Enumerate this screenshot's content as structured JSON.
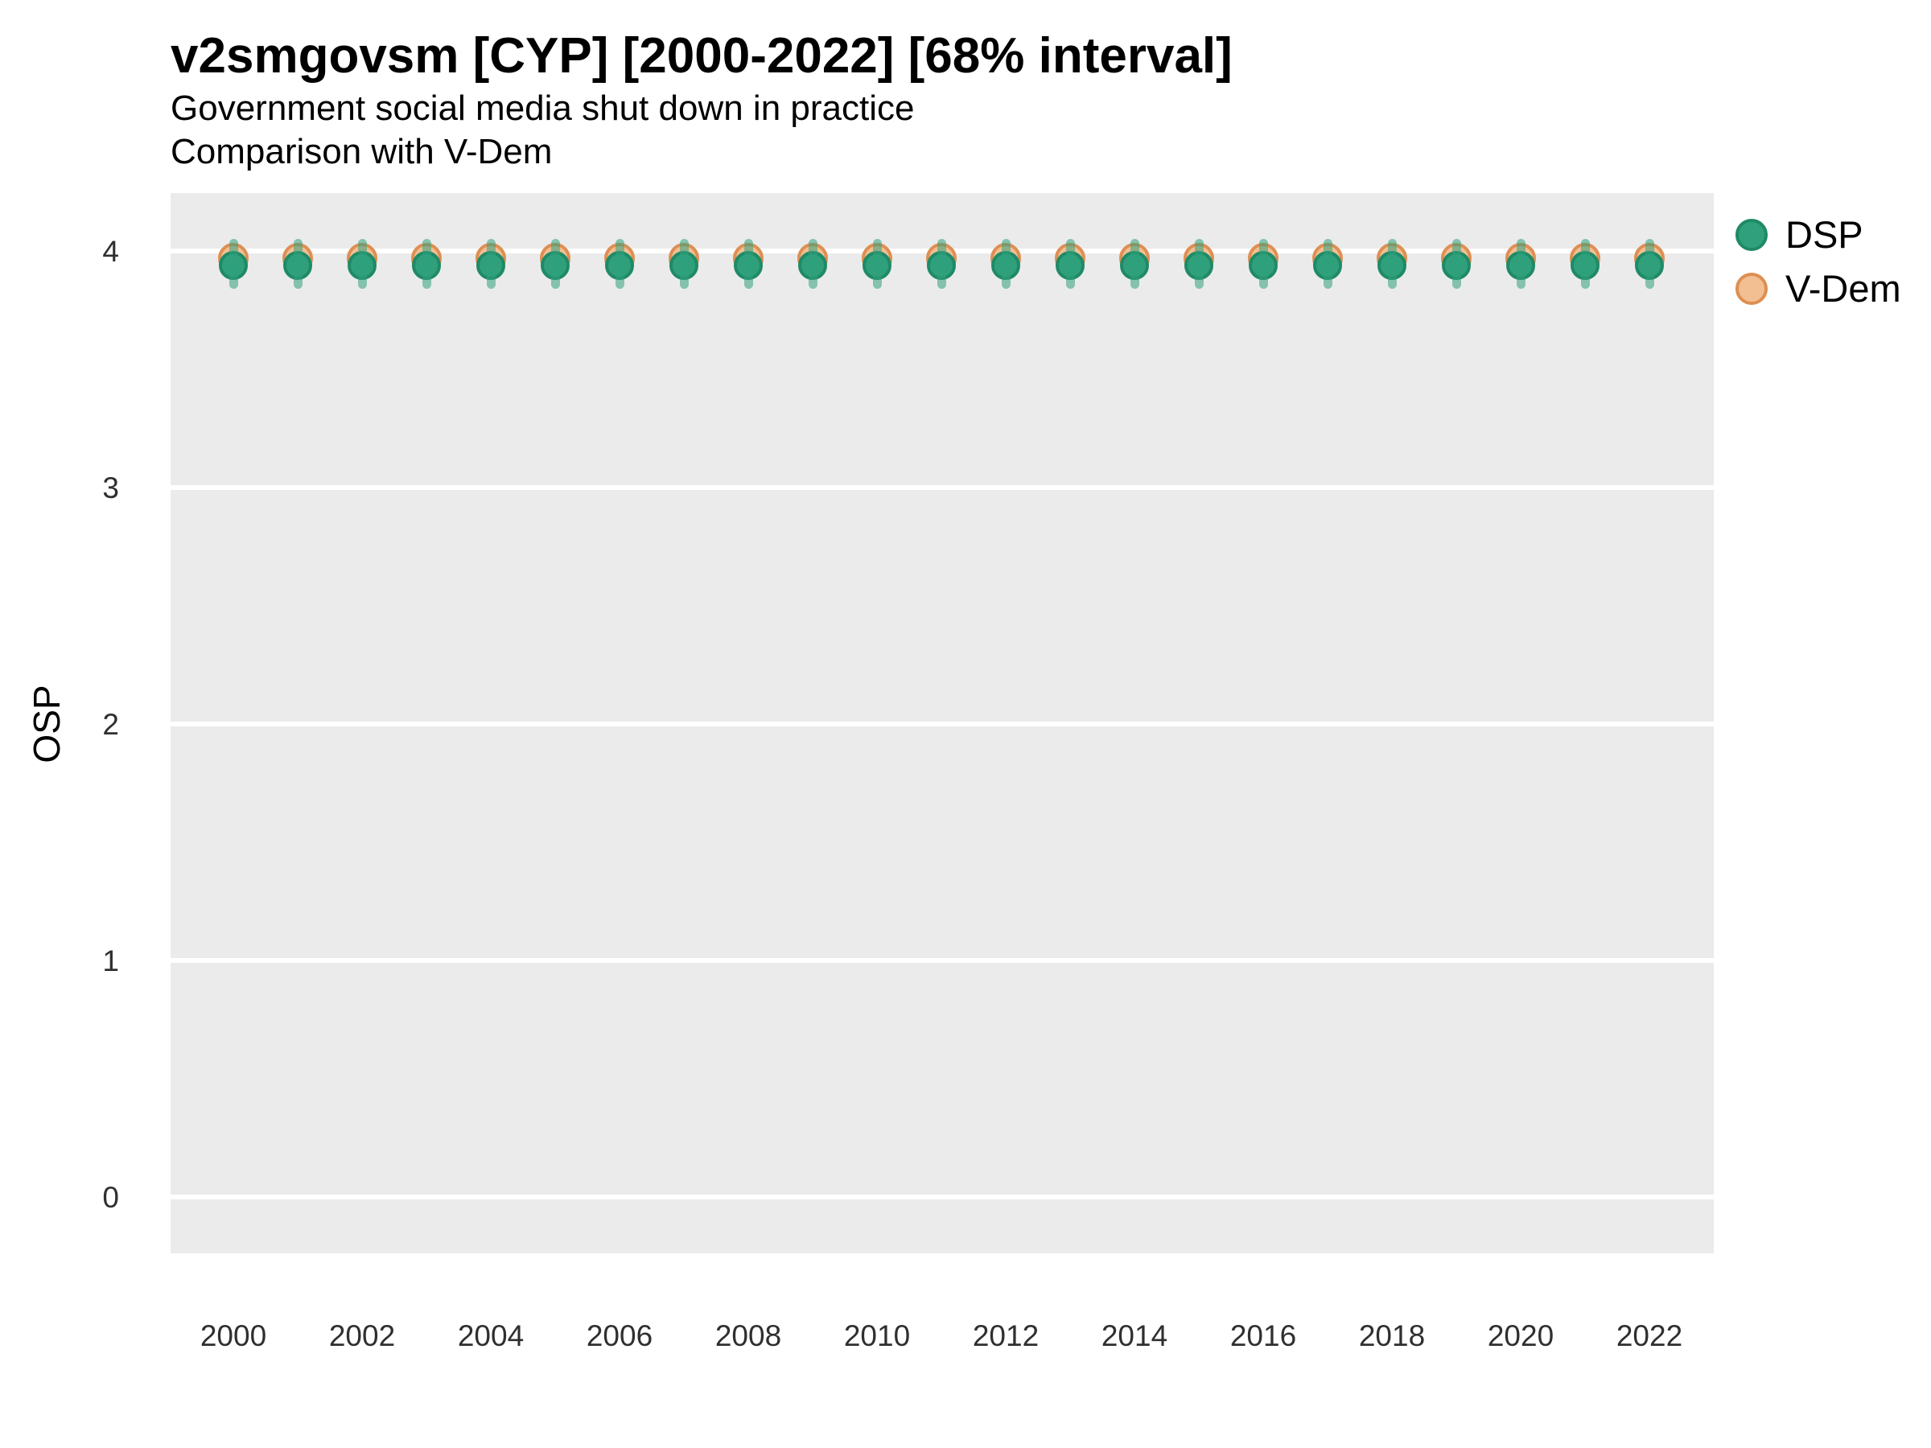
{
  "header": {
    "title": "v2smgovsm [CYP] [2000-2022] [68% interval]",
    "subtitle_line1": "Government social media shut down in practice",
    "subtitle_line2": "Comparison with V-Dem"
  },
  "legend": {
    "position": "right",
    "items": [
      {
        "label": "DSP",
        "fill": "#30a07c",
        "stroke": "#1f8a66"
      },
      {
        "label": "V-Dem",
        "fill": "#f2bf93",
        "stroke": "#de8f53"
      }
    ]
  },
  "axes": {
    "y_label": "OSP",
    "y_ticks": [
      4,
      3,
      2,
      1,
      0
    ],
    "x_ticks": [
      2000,
      2002,
      2004,
      2006,
      2008,
      2010,
      2012,
      2014,
      2016,
      2018,
      2020,
      2022
    ]
  },
  "colors": {
    "panel_background": "#ebebeb",
    "gridline": "#ffffff",
    "dsp_fill": "#30a07c",
    "dsp_stroke": "#1f8a66",
    "vdem_fill": "#f2bf93",
    "vdem_stroke": "#de8f53",
    "interval_bar": "rgba(48,160,124,0.55)"
  },
  "chart_data": {
    "type": "scatter",
    "title": "v2smgovsm [CYP] [2000-2022] [68% interval]",
    "subtitle": [
      "Government social media shut down in practice",
      "Comparison with V-Dem"
    ],
    "xlabel": "",
    "ylabel": "OSP",
    "ylim": [
      -0.25,
      4.25
    ],
    "xlim": [
      1999,
      2023
    ],
    "grid": "horizontal-major-only",
    "legend_position": "right",
    "x": [
      2000,
      2001,
      2002,
      2003,
      2004,
      2005,
      2006,
      2007,
      2008,
      2009,
      2010,
      2011,
      2012,
      2013,
      2014,
      2015,
      2016,
      2017,
      2018,
      2019,
      2020,
      2021,
      2022
    ],
    "series": [
      {
        "name": "DSP",
        "values": [
          3.94,
          3.94,
          3.94,
          3.94,
          3.94,
          3.94,
          3.94,
          3.94,
          3.94,
          3.94,
          3.94,
          3.94,
          3.94,
          3.94,
          3.94,
          3.94,
          3.94,
          3.94,
          3.94,
          3.94,
          3.94,
          3.94,
          3.94
        ],
        "interval_68_low": [
          3.84,
          3.84,
          3.84,
          3.84,
          3.84,
          3.84,
          3.84,
          3.84,
          3.84,
          3.84,
          3.84,
          3.84,
          3.84,
          3.84,
          3.84,
          3.84,
          3.84,
          3.84,
          3.84,
          3.84,
          3.84,
          3.84,
          3.84
        ],
        "interval_68_high": [
          4.05,
          4.05,
          4.05,
          4.05,
          4.05,
          4.05,
          4.05,
          4.05,
          4.05,
          4.05,
          4.05,
          4.05,
          4.05,
          4.05,
          4.05,
          4.05,
          4.05,
          4.05,
          4.05,
          4.05,
          4.05,
          4.05,
          4.05
        ]
      },
      {
        "name": "V-Dem",
        "values": [
          3.97,
          3.97,
          3.97,
          3.97,
          3.97,
          3.97,
          3.97,
          3.97,
          3.97,
          3.97,
          3.97,
          3.97,
          3.97,
          3.97,
          3.97,
          3.97,
          3.97,
          3.97,
          3.97,
          3.97,
          3.97,
          3.97,
          3.97
        ]
      }
    ]
  }
}
